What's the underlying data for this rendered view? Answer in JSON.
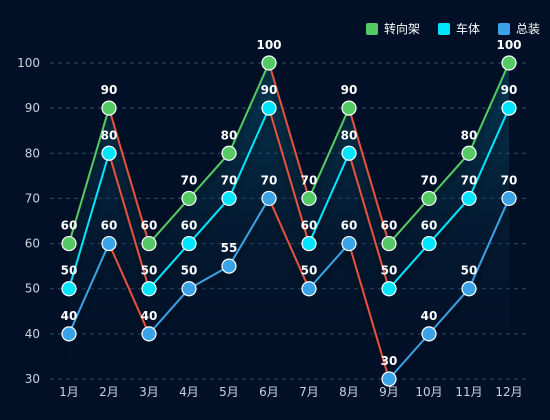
{
  "chart_data": {
    "type": "line",
    "categories": [
      "1月",
      "2月",
      "3月",
      "4月",
      "5月",
      "6月",
      "7月",
      "8月",
      "9月",
      "10月",
      "11月",
      "12月"
    ],
    "series": [
      {
        "name": "转向架",
        "color": "#54c964",
        "values": [
          60,
          90,
          60,
          70,
          80,
          100,
          70,
          90,
          60,
          70,
          80,
          100
        ]
      },
      {
        "name": "车体",
        "color": "#00e5ff",
        "values": [
          50,
          80,
          50,
          60,
          70,
          90,
          60,
          80,
          50,
          60,
          70,
          90
        ]
      },
      {
        "name": "总装",
        "color": "#3aa2e6",
        "values": [
          40,
          60,
          40,
          50,
          55,
          70,
          50,
          60,
          30,
          40,
          50,
          70
        ]
      }
    ],
    "ylim": [
      30,
      100
    ],
    "yticks": [
      30,
      40,
      50,
      60,
      70,
      80,
      90,
      100
    ],
    "grid": true,
    "legend_position": "top-right",
    "colors": {
      "background": "#021027",
      "connector_line": "#e5533f",
      "grid": "#2f4a66",
      "axis_text": "#c8d2de",
      "label_text": "#ffffff"
    }
  }
}
